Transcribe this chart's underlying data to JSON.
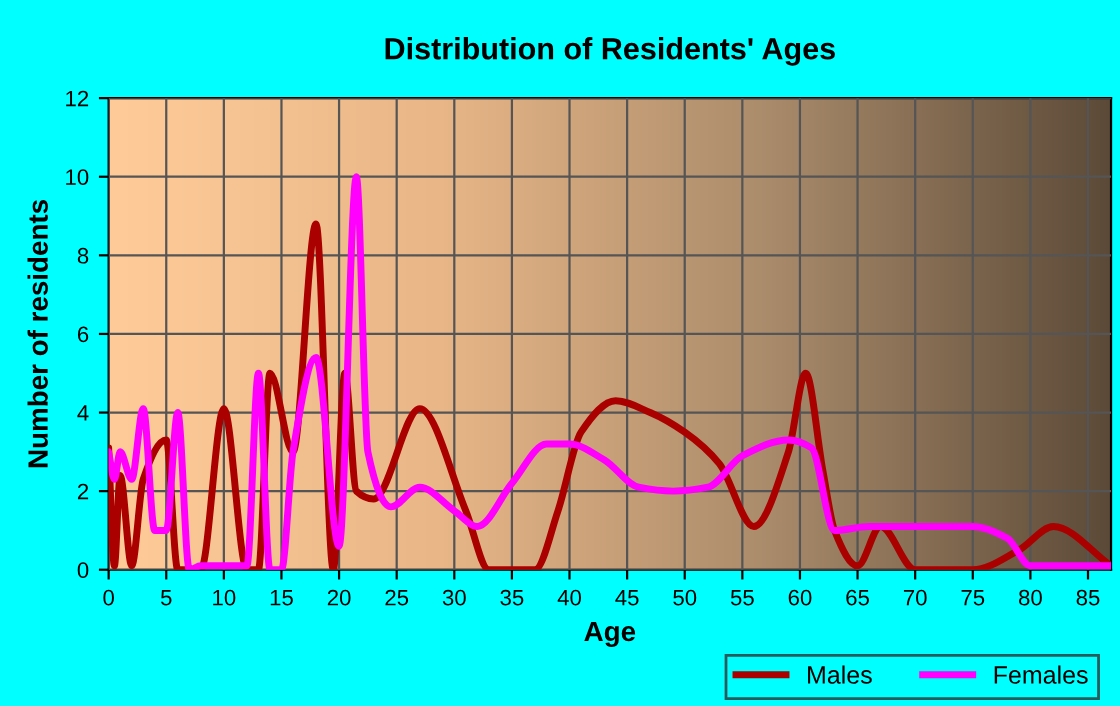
{
  "chart_data": {
    "type": "line",
    "title": "Distribution of Residents' Ages",
    "xlabel": "Age",
    "ylabel": "Number of residents",
    "xlim": [
      0,
      87
    ],
    "xticks": [
      0,
      5,
      10,
      15,
      20,
      25,
      30,
      35,
      40,
      45,
      50,
      55,
      60,
      65,
      70,
      75,
      80,
      85
    ],
    "ylim": [
      0,
      12
    ],
    "yticks": [
      0,
      2,
      4,
      6,
      8,
      10,
      12
    ],
    "grid": true,
    "legend": "bottom right",
    "series": [
      {
        "name": "Males",
        "color": "#aa0000",
        "x": [
          0,
          0.5,
          1,
          2,
          3,
          5,
          6,
          8,
          10,
          12,
          13,
          14,
          16,
          18,
          19.5,
          20.5,
          21.5,
          23,
          27,
          31,
          33,
          37,
          39,
          41,
          44,
          47,
          50,
          53,
          56,
          59,
          60.5,
          62,
          63,
          65,
          67,
          70,
          75,
          79,
          82,
          87
        ],
        "values": [
          3.1,
          0.1,
          2.4,
          0.1,
          2.3,
          3.3,
          0,
          0,
          4.1,
          0,
          0,
          5,
          3,
          8.8,
          0,
          5,
          2,
          1.8,
          4.1,
          1.5,
          0,
          0,
          1.5,
          3.5,
          4.3,
          4,
          3.5,
          2.7,
          1.1,
          3,
          5,
          2.5,
          1,
          0.1,
          1.1,
          0,
          0,
          0.5,
          1.1,
          0.1
        ]
      },
      {
        "name": "Females",
        "color": "#ff00ff",
        "x": [
          0,
          0.5,
          1,
          2,
          3,
          4,
          5,
          6,
          7,
          8,
          12,
          13,
          14,
          15,
          16,
          18,
          20,
          21.5,
          22.5,
          24.5,
          27,
          30,
          32,
          35,
          38,
          40,
          43,
          46,
          49,
          52,
          55,
          59,
          61,
          63,
          66,
          75,
          78,
          80,
          87
        ],
        "values": [
          3,
          2.3,
          3,
          2.3,
          4.1,
          1,
          1,
          4,
          0,
          0.1,
          0.1,
          5,
          0,
          0,
          3,
          5.4,
          0.6,
          10,
          3,
          1.6,
          2.1,
          1.5,
          1.1,
          2.2,
          3.2,
          3.2,
          2.8,
          2.1,
          2,
          2.1,
          2.9,
          3.3,
          3.1,
          1,
          1.1,
          1.1,
          0.8,
          0.1,
          0.1
        ]
      }
    ]
  }
}
